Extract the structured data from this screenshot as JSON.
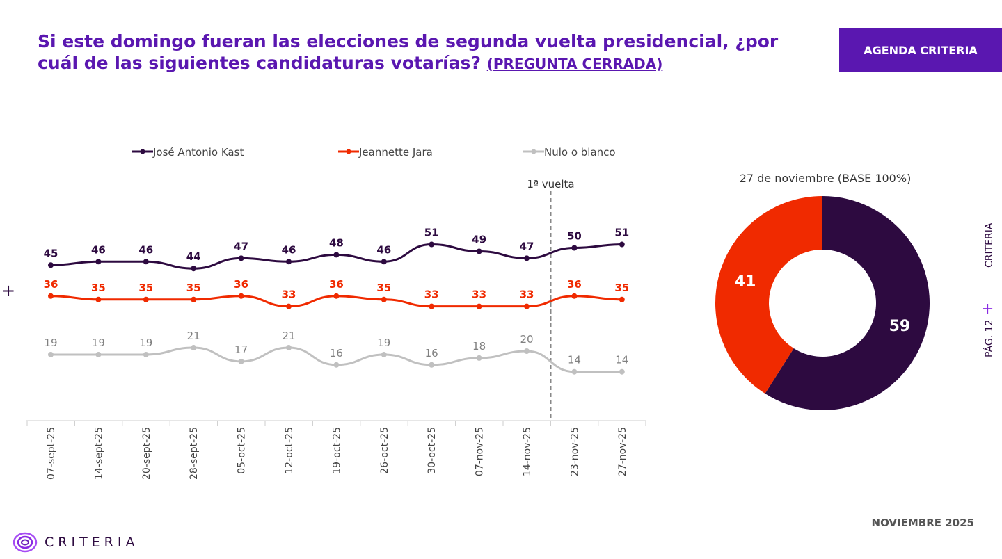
{
  "header": {
    "title": "Si este domingo fueran las elecciones de segunda vuelta presidencial, ¿por cuál de las siguientes candidaturas votarías?",
    "title_tag": "(PREGUNTA CERRADA)",
    "badge": "AGENDA CRITERIA"
  },
  "side": {
    "brand": "CRITERIA",
    "page": "PÁG. 12"
  },
  "footer": {
    "date": "NOVIEMBRE 2025",
    "logo": "CRITERIA"
  },
  "colors": {
    "kast": "#2d0a40",
    "jara": "#f02a00",
    "nulo": "#c0c0c0",
    "accent": "#5a17b0"
  },
  "chart_data": [
    {
      "type": "line",
      "categories": [
        "07-sept-25",
        "14-sept-25",
        "20-sept-25",
        "28-sept-25",
        "05-oct-25",
        "12-oct-25",
        "19-oct-25",
        "26-oct-25",
        "30-oct-25",
        "07-nov-25",
        "14-nov-25",
        "23-nov-25",
        "27-nov-25"
      ],
      "series": [
        {
          "name": "José Antonio Kast",
          "values": [
            45,
            46,
            46,
            44,
            47,
            46,
            48,
            46,
            51,
            49,
            47,
            50,
            51
          ]
        },
        {
          "name": "Jeannette Jara",
          "values": [
            36,
            35,
            35,
            35,
            36,
            33,
            36,
            35,
            33,
            33,
            33,
            36,
            35
          ]
        },
        {
          "name": "Nulo o blanco",
          "values": [
            19,
            19,
            19,
            21,
            17,
            21,
            16,
            19,
            16,
            18,
            20,
            14,
            14
          ]
        }
      ],
      "legend": "top",
      "annotation": {
        "label": "1ª vuelta",
        "after_category": "14-nov-25"
      }
    },
    {
      "type": "pie",
      "title": "27 de noviembre (BASE 100%)",
      "labels": [
        "José Antonio Kast",
        "Jeannette Jara"
      ],
      "values": [
        59,
        41
      ],
      "donut": true
    }
  ]
}
